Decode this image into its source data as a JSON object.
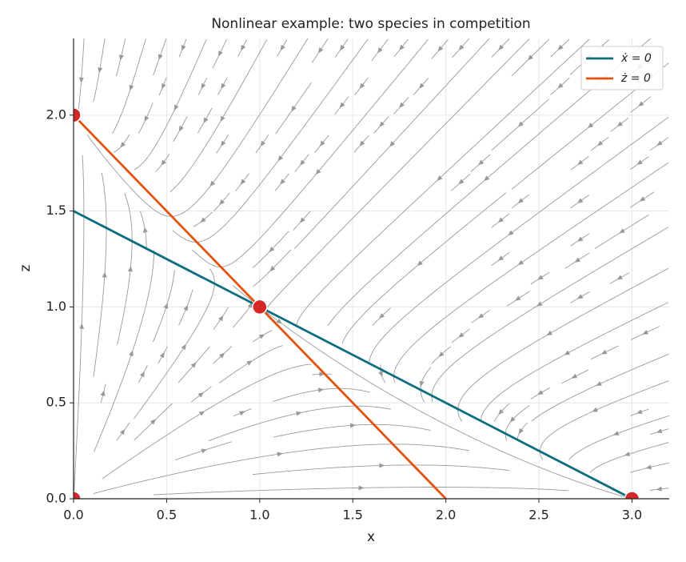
{
  "chart_data": {
    "type": "line",
    "title": "Nonlinear example: two species in competition",
    "x_label": "x",
    "y_label": "z",
    "xlim": [
      0,
      3.2
    ],
    "ylim": [
      0,
      2.4
    ],
    "xticks": [
      {
        "value": 0,
        "label": "0.0"
      },
      0.5,
      {
        "value": 1,
        "label": "1.0"
      },
      1.5,
      {
        "value": 2,
        "label": "2.0"
      },
      2.5,
      {
        "value": 3,
        "label": "3.0"
      }
    ],
    "yticks": [
      {
        "value": 0,
        "label": "0.0"
      },
      0.5,
      {
        "value": 1,
        "label": "1.0"
      },
      1.5,
      {
        "value": 2,
        "label": "2.0"
      }
    ],
    "grid": true,
    "legend": "upper right",
    "series": [
      {
        "name": "ẋ = 0",
        "color": "#0e6e80",
        "x": [
          0,
          3
        ],
        "values": [
          1.5,
          0
        ]
      },
      {
        "name": "ż = 0",
        "color": "#e3530d",
        "x": [
          0,
          2
        ],
        "values": [
          2,
          0
        ]
      }
    ],
    "points": {
      "color": "#d62728",
      "x": [
        0,
        0,
        1,
        3
      ],
      "values": [
        0,
        2,
        1,
        0
      ]
    }
  }
}
